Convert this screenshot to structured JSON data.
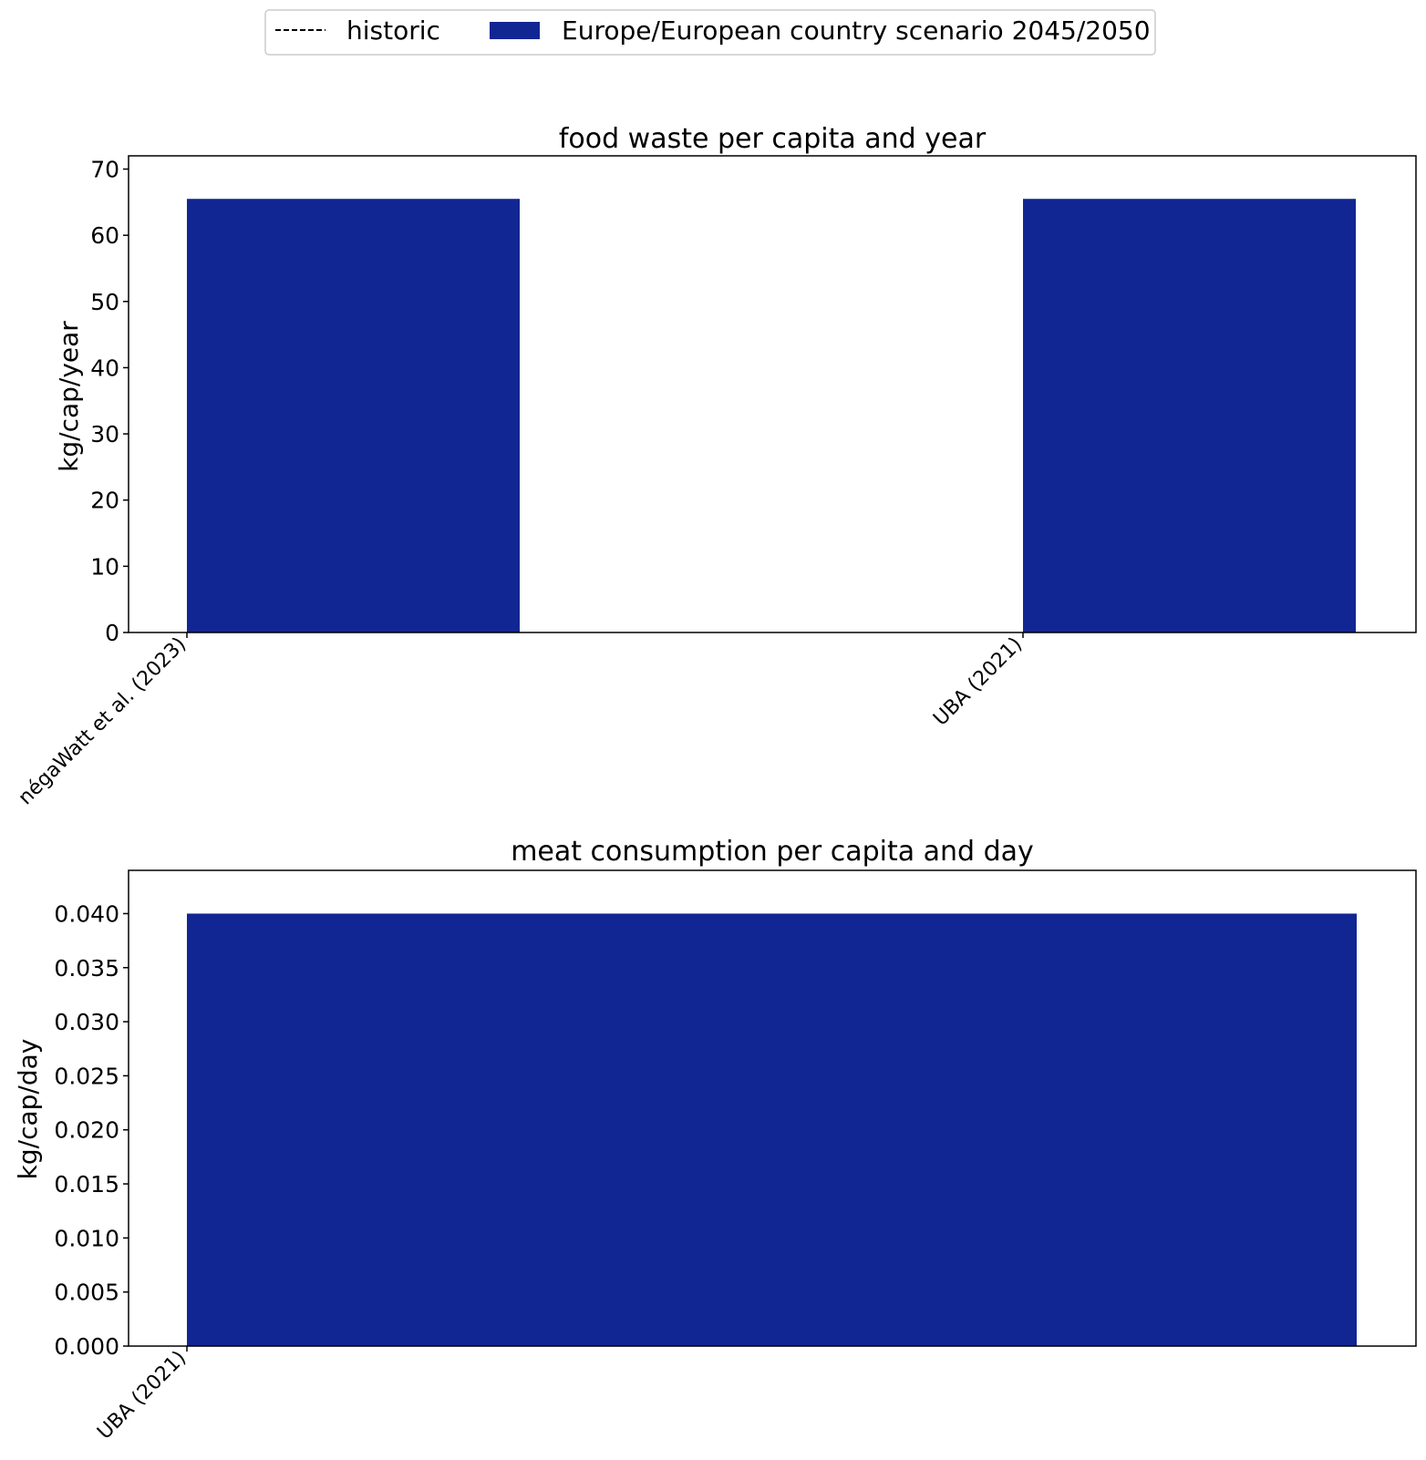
{
  "legend": {
    "items": [
      {
        "label": "historic",
        "style": "dashed-line",
        "color": "#000000"
      },
      {
        "label": "Europe/European country scenario 2045/2050",
        "style": "filled-box",
        "color": "#122693"
      }
    ]
  },
  "chart_data": [
    {
      "type": "bar",
      "title": "food waste per capita and year",
      "xlabel": "",
      "ylabel": "kg/cap/year",
      "categories": [
        "négaWatt et al. (2023)",
        "UBA (2021)"
      ],
      "values": [
        65.5,
        65.5
      ],
      "ylim": [
        0,
        72
      ],
      "yticks": [
        "0",
        "10",
        "20",
        "30",
        "40",
        "50",
        "60",
        "70"
      ],
      "bar_color": "#122693",
      "grid": false
    },
    {
      "type": "bar",
      "title": "meat consumption per capita and day",
      "xlabel": "",
      "ylabel": "kg/cap/day",
      "categories": [
        "UBA (2021)"
      ],
      "values": [
        0.04
      ],
      "ylim": [
        0,
        0.044
      ],
      "yticks": [
        "0.000",
        "0.005",
        "0.010",
        "0.015",
        "0.020",
        "0.025",
        "0.030",
        "0.035",
        "0.040"
      ],
      "bar_color": "#122693",
      "grid": false
    }
  ]
}
